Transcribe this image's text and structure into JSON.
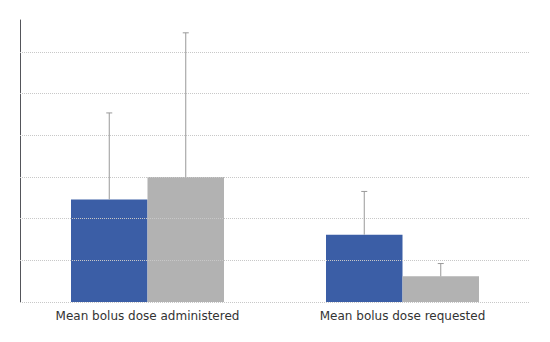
{
  "chart_data": {
    "type": "bar",
    "categories": [
      "Mean bolus dose administered",
      "Mean bolus dose requested"
    ],
    "series": [
      {
        "color": "#3b5ea6",
        "values": [
          3.2,
          2.1
        ],
        "errors_upper": [
          2.7,
          1.35
        ]
      },
      {
        "color": "#b2b2b2",
        "values": [
          3.9,
          0.8
        ],
        "errors_upper": [
          4.5,
          0.4
        ]
      }
    ],
    "ylim": [
      0,
      8.8
    ],
    "yticks": [
      0,
      1.3,
      2.6,
      3.9,
      5.2,
      6.5,
      7.8
    ],
    "grid": true,
    "tick_labels": "x"
  }
}
